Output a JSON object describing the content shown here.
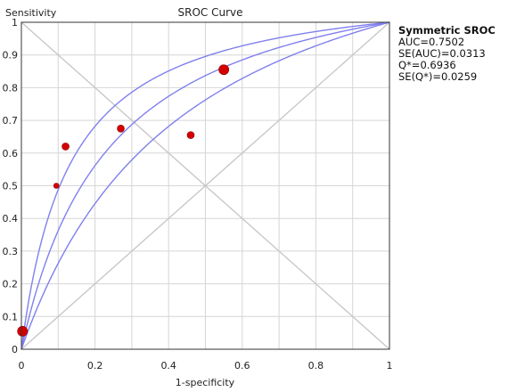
{
  "chart_data": {
    "type": "scatter",
    "title": "SROC Curve",
    "xlabel": "1-specificity",
    "ylabel": "Sensitivity",
    "xlim": [
      0,
      1
    ],
    "ylim": [
      0,
      1
    ],
    "x_ticks": [
      "0",
      "0.2",
      "0.4",
      "0.6",
      "0.8",
      "1"
    ],
    "y_ticks": [
      "0",
      "0.1",
      "0.2",
      "0.3",
      "0.4",
      "0.5",
      "0.6",
      "0.7",
      "0.8",
      "0.9",
      "1"
    ],
    "grid": true,
    "points": [
      {
        "x": 0.003,
        "y": 0.055,
        "weight": "large"
      },
      {
        "x": 0.095,
        "y": 0.5,
        "weight": "small"
      },
      {
        "x": 0.12,
        "y": 0.62,
        "weight": "medium"
      },
      {
        "x": 0.27,
        "y": 0.675,
        "weight": "medium"
      },
      {
        "x": 0.46,
        "y": 0.655,
        "weight": "medium"
      },
      {
        "x": 0.55,
        "y": 0.855,
        "weight": "large"
      }
    ],
    "sroc_curve": {
      "Q_star": 0.6936,
      "SE_Q_star": 0.0259
    },
    "reference_lines": [
      "diagonal",
      "anti-diagonal"
    ],
    "colors": {
      "points": "#d40000",
      "curve": "#8080ee",
      "grid": "#d6d6d6",
      "reference": "#c8c8c8"
    }
  },
  "stats_box": {
    "heading": "Symmetric SROC",
    "auc": "AUC=0.7502",
    "se_auc": "SE(AUC)=0.0313",
    "q_star": "Q*=0.6936",
    "se_q_star": "SE(Q*)=0.0259"
  }
}
